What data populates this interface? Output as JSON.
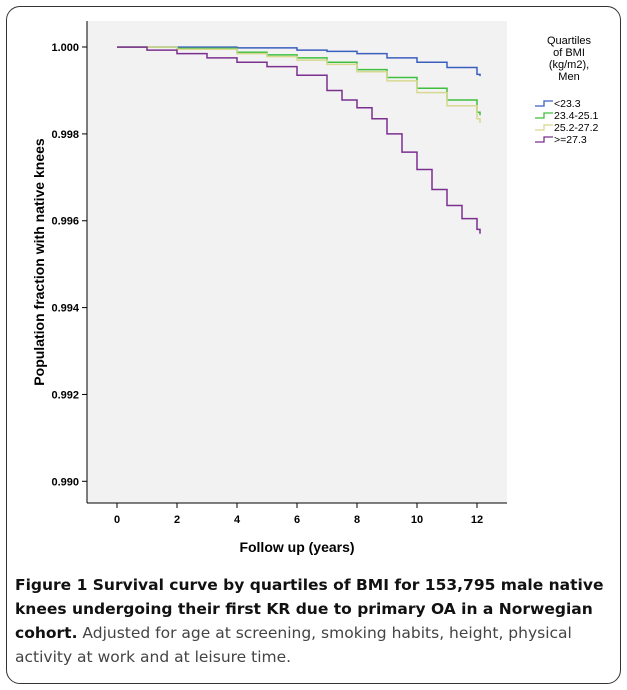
{
  "chart_data": {
    "type": "line",
    "xlabel": "Follow up (years)",
    "ylabel": "Population fraction with native knees",
    "xlim": [
      -1,
      13
    ],
    "ylim": [
      0.9895,
      1.0006
    ],
    "xticks": [
      "0",
      "2",
      "4",
      "6",
      "8",
      "10",
      "12"
    ],
    "yticks": [
      "0.990",
      "0.992",
      "0.994",
      "0.996",
      "0.998",
      "1.000"
    ],
    "legend_title": [
      "Quartiles",
      "of BMI",
      "(kg/m2),",
      "Men"
    ],
    "legend_position": "right",
    "series": [
      {
        "name": "<23.3",
        "color": "#3b5fbf",
        "x": [
          0,
          2,
          4,
          6,
          7,
          8,
          9,
          10,
          11,
          12,
          12.1
        ],
        "y": [
          1.0,
          1.0,
          0.99998,
          0.99993,
          0.9999,
          0.99985,
          0.99975,
          0.99965,
          0.99953,
          0.99937,
          0.99933
        ]
      },
      {
        "name": "23.4-25.1",
        "color": "#3fbf3f",
        "x": [
          0,
          2,
          4,
          5,
          6,
          7,
          8,
          9,
          10,
          11,
          12,
          12.1
        ],
        "y": [
          1.0,
          0.99997,
          0.99988,
          0.99982,
          0.99975,
          0.99965,
          0.99948,
          0.9993,
          0.99905,
          0.99878,
          0.9985,
          0.99843
        ]
      },
      {
        "name": "25.2-27.2",
        "color": "#d8d890",
        "x": [
          0,
          2,
          4,
          5,
          6,
          7,
          8,
          9,
          10,
          11,
          12,
          12.1
        ],
        "y": [
          1.0,
          0.99995,
          0.99985,
          0.99978,
          0.9997,
          0.9996,
          0.99943,
          0.99922,
          0.99895,
          0.99865,
          0.99835,
          0.99825
        ]
      },
      {
        "name": ">=27.3",
        "color": "#7b2f8f",
        "x": [
          0,
          1,
          2,
          3,
          4,
          5,
          6,
          7,
          7.5,
          8,
          8.5,
          9,
          9.5,
          10,
          10.5,
          11,
          11.5,
          12,
          12.1
        ],
        "y": [
          1.0,
          0.99993,
          0.99985,
          0.99975,
          0.99965,
          0.99955,
          0.99935,
          0.999,
          0.99878,
          0.9986,
          0.99835,
          0.998,
          0.99758,
          0.99718,
          0.99672,
          0.99635,
          0.99605,
          0.9958,
          0.9957
        ]
      }
    ]
  },
  "caption": {
    "bold": "Figure 1 Survival curve by quartiles of BMI for 153,795 male native knees undergoing their first KR due to primary OA in a Norwegian cohort.",
    "text": " Adjusted for age at screening, smoking habits, height, physical activity at work and at leisure time."
  }
}
